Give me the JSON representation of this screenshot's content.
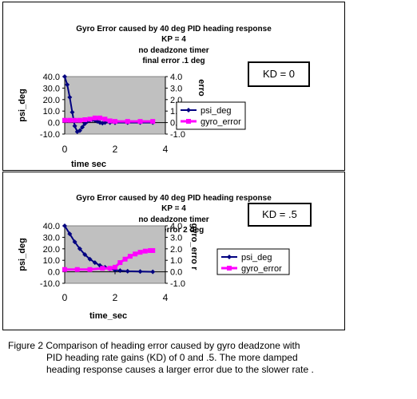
{
  "chart_data": [
    {
      "type": "line",
      "title_lines": [
        "Gyro Error caused by 40 deg PID heading  response",
        "KP = 4",
        "no deadzone timer",
        "final error .1 deg"
      ],
      "annotation": "KD = 0",
      "xlabel": "time  sec",
      "ylabel": "psi_deg",
      "y2label": "erro",
      "xlim": [
        0,
        4
      ],
      "ylim": [
        -10,
        40
      ],
      "y2lim": [
        -1,
        4
      ],
      "xticks": [
        "0",
        "2",
        "4"
      ],
      "yticks": [
        "40.0",
        "30.0",
        "20.0",
        "10.0",
        "0.0",
        "-10.0"
      ],
      "y2ticks": [
        "4.0",
        "3.0",
        "2.0",
        "1.0",
        "0.0",
        "-1.0"
      ],
      "legend_position": "right",
      "plot_background": "#c0c0c0",
      "series": [
        {
          "name": "psi_deg",
          "axis": "left",
          "color": "#000080",
          "marker": "diamond",
          "x": [
            0,
            0.1,
            0.2,
            0.3,
            0.4,
            0.5,
            0.6,
            0.7,
            0.8,
            0.9,
            1.0,
            1.1,
            1.2,
            1.3,
            1.4,
            1.5,
            1.6,
            1.8,
            2.0,
            2.5,
            3.0,
            3.5
          ],
          "values": [
            40,
            33,
            22,
            9,
            -3,
            -8,
            -7,
            -4,
            -1,
            1,
            2,
            2.5,
            2,
            1,
            0,
            -0.5,
            0,
            0,
            0,
            0,
            0,
            0
          ]
        },
        {
          "name": "gyro_error",
          "axis": "right",
          "color": "#ff00ff",
          "marker": "square",
          "x": [
            0,
            0.2,
            0.4,
            0.6,
            0.8,
            1.0,
            1.2,
            1.4,
            1.6,
            1.8,
            2.0,
            2.5,
            3.0,
            3.5
          ],
          "values": [
            0.2,
            0.2,
            0.2,
            0.2,
            0.25,
            0.3,
            0.4,
            0.4,
            0.3,
            0.15,
            0.1,
            0.1,
            0.1,
            0.1
          ]
        }
      ]
    },
    {
      "type": "line",
      "title_lines": [
        "Gyro Error caused by 40 deg PID heading  response",
        "KP = 4",
        "no deadzone timer",
        "final error 2 deg"
      ],
      "annotation": "KD = .5",
      "xlabel": "time_sec",
      "ylabel": "psi_deg",
      "y2label": "gyro_erro r",
      "xlim": [
        0,
        4
      ],
      "ylim": [
        -10,
        40
      ],
      "y2lim": [
        -1,
        4
      ],
      "xticks": [
        "0",
        "2",
        "4"
      ],
      "yticks": [
        "40.0",
        "30.0",
        "20.0",
        "10.0",
        "0.0",
        "-10.0"
      ],
      "y2ticks": [
        "4.0",
        "3.0",
        "2.0",
        "1.0",
        "0.0",
        "-1.0"
      ],
      "legend_position": "right",
      "plot_background": "#c0c0c0",
      "series": [
        {
          "name": "psi_deg",
          "axis": "left",
          "color": "#000080",
          "marker": "diamond",
          "x": [
            0,
            0.2,
            0.4,
            0.6,
            0.8,
            1.0,
            1.2,
            1.4,
            1.6,
            1.8,
            2.0,
            2.2,
            2.5,
            3.0,
            3.5
          ],
          "values": [
            40,
            33,
            26,
            20,
            15,
            11,
            8,
            5.5,
            4,
            2.5,
            1.5,
            1,
            0.5,
            0.2,
            0
          ],
          "partial_values": true
        },
        {
          "name": "gyro_error",
          "axis": "right",
          "color": "#ff00ff",
          "marker": "square",
          "x": [
            0,
            0.5,
            1.0,
            1.5,
            1.8,
            2.0,
            2.2,
            2.4,
            2.6,
            2.8,
            3.0,
            3.2,
            3.4,
            3.5
          ],
          "values": [
            0.2,
            0.2,
            0.2,
            0.3,
            0.3,
            0.4,
            0.8,
            1.1,
            1.35,
            1.55,
            1.7,
            1.8,
            1.85,
            1.85
          ]
        }
      ]
    }
  ],
  "caption": {
    "line1": "Figure 2  Comparison of heading error caused by gyro deadzone with",
    "line2": "PID heading rate gains (KD) of 0 and .5.   The more damped",
    "line3": "heading response causes a larger error due to the slower rate ."
  }
}
